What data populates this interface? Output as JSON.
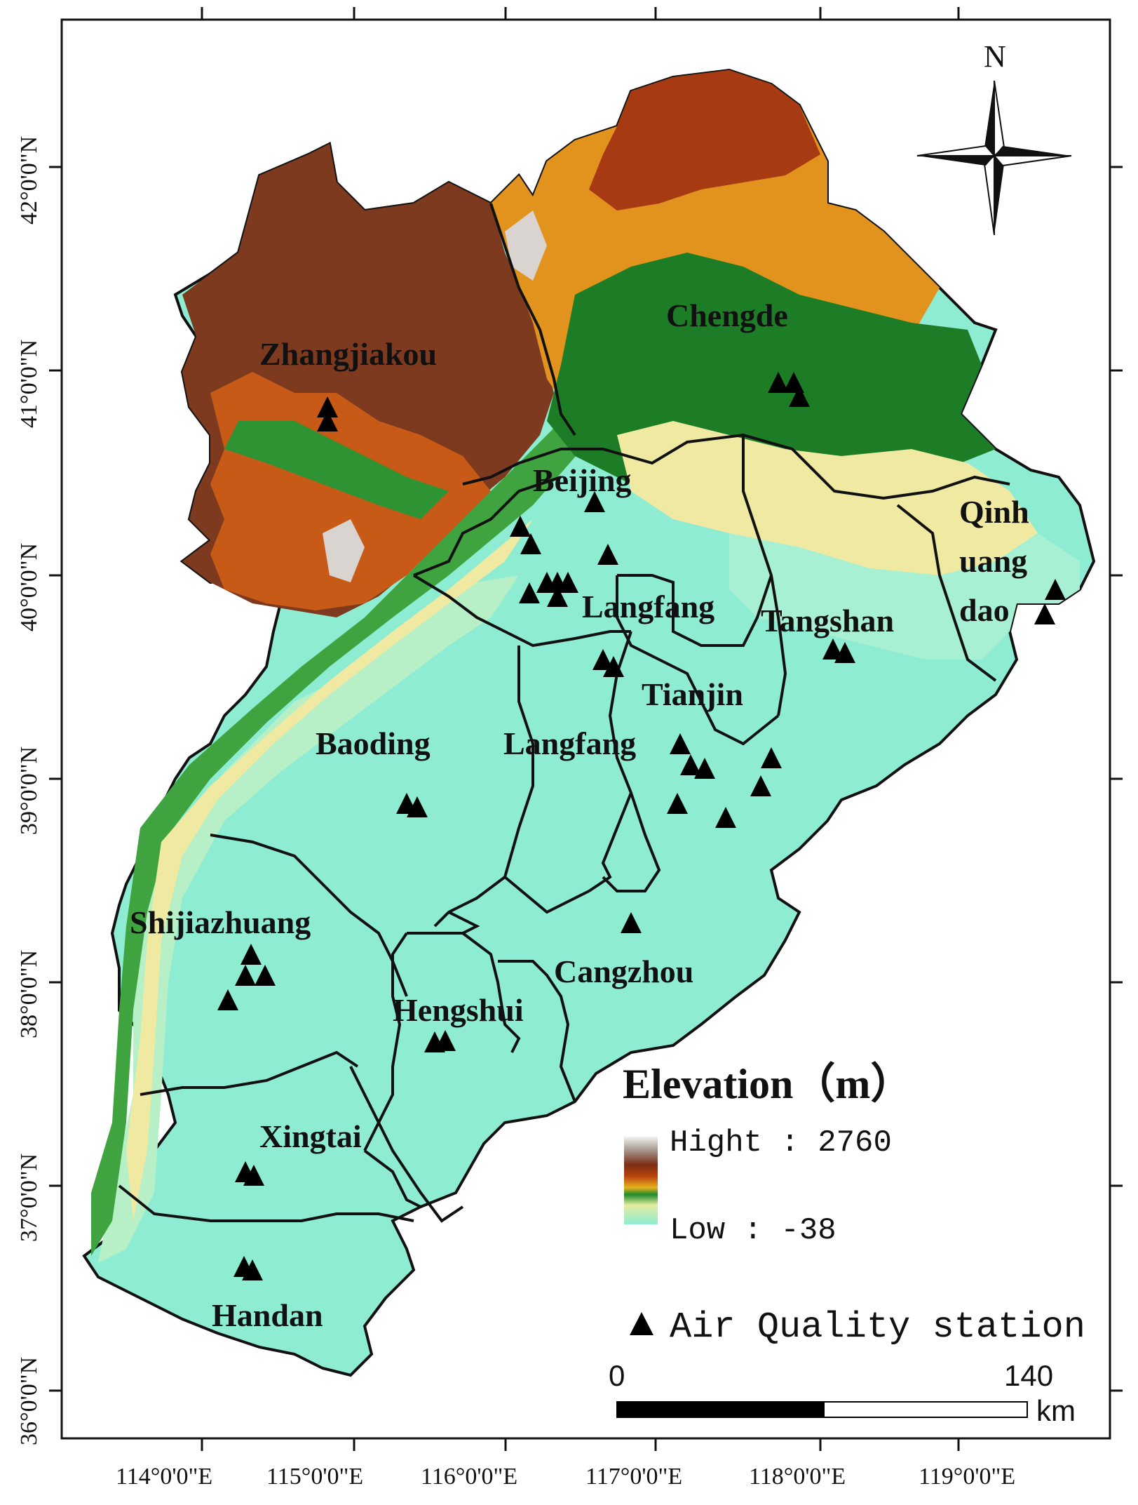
{
  "map": {
    "lon_labels": [
      "114°0'0\"E",
      "115°0'0\"E",
      "116°0'0\"E",
      "117°0'0\"E",
      "118°0'0\"E",
      "119°0'0\"E"
    ],
    "lat_labels": [
      "42°0'0\"N",
      "41°0'0\"N",
      "40°0'0\"N",
      "39°0'0\"N",
      "38°0'0\"N",
      "37°0'0\"N",
      "36°0'0\"N"
    ],
    "cities": {
      "zhangjiakou": "Zhangjiakou",
      "chengde": "Chengde",
      "beijing": "Beijing",
      "qinhuangdao_1": "Qinh",
      "qinhuangdao_2": "uang",
      "qinhuangdao_3": "dao",
      "langfang_north": "Langfang",
      "tangshan": "Tangshan",
      "tianjin": "Tianjin",
      "baoding": "Baoding",
      "langfang_south": "Langfang",
      "shijiazhuang": "Shijiazhuang",
      "cangzhou": "Cangzhou",
      "hengshui": "Hengshui",
      "xingtai": "Xingtai",
      "handan": "Handan"
    },
    "north_label": "N",
    "legend": {
      "title": "Elevation（m）",
      "high": "Hight : 2760",
      "low": "Low : -38",
      "station": "Air Quality station"
    },
    "scale_bar": {
      "start": "0",
      "end": "140",
      "unit": "km"
    },
    "colors": {
      "lowland": "#8eecd2",
      "plain": "#b7f0c6",
      "yellow": "#efe9a2",
      "green": "#3fa340",
      "dark_green": "#1d7d27",
      "orange": "#e2931e",
      "red_brown": "#a83a13",
      "brown": "#7d3a1e",
      "peak": "#d9d4d0"
    }
  }
}
